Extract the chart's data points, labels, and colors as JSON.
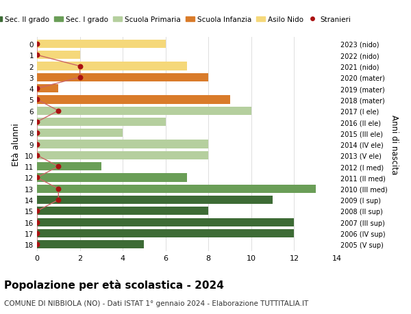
{
  "ages": [
    18,
    17,
    16,
    15,
    14,
    13,
    12,
    11,
    10,
    9,
    8,
    7,
    6,
    5,
    4,
    3,
    2,
    1,
    0
  ],
  "years": [
    "2005 (V sup)",
    "2006 (IV sup)",
    "2007 (III sup)",
    "2008 (II sup)",
    "2009 (I sup)",
    "2010 (III med)",
    "2011 (II med)",
    "2012 (I med)",
    "2013 (V ele)",
    "2014 (IV ele)",
    "2015 (III ele)",
    "2016 (II ele)",
    "2017 (I ele)",
    "2018 (mater)",
    "2019 (mater)",
    "2020 (mater)",
    "2021 (nido)",
    "2022 (nido)",
    "2023 (nido)"
  ],
  "values": [
    5,
    12,
    12,
    8,
    11,
    13,
    7,
    3,
    8,
    8,
    4,
    6,
    10,
    9,
    1,
    8,
    7,
    2,
    6
  ],
  "stranieri_x": [
    0,
    0,
    0,
    0,
    1,
    1,
    0,
    1,
    0,
    0,
    0,
    0,
    1,
    0,
    0,
    2,
    2,
    0,
    0
  ],
  "categories": {
    "sec2": [
      18,
      17,
      16,
      15,
      14
    ],
    "sec1": [
      13,
      12,
      11
    ],
    "primaria": [
      10,
      9,
      8,
      7,
      6
    ],
    "infanzia": [
      5,
      4,
      3
    ],
    "nido": [
      2,
      1,
      0
    ]
  },
  "colors": {
    "sec2": "#3d6b35",
    "sec1": "#6a9e57",
    "primaria": "#b5cf9e",
    "infanzia": "#d97b2a",
    "nido": "#f5d87a"
  },
  "stranieri_color": "#aa1111",
  "stranieri_line_color": "#cc6666",
  "xlim": [
    0,
    14
  ],
  "title": "Popolazione per età scolastica - 2024",
  "subtitle": "COMUNE DI NIBBIOLA (NO) - Dati ISTAT 1° gennaio 2024 - Elaborazione TUTTITALIA.IT",
  "ylabel": "Età alunni",
  "ylabel2": "Anni di nascita",
  "legend_labels": [
    "Sec. II grado",
    "Sec. I grado",
    "Scuola Primaria",
    "Scuola Infanzia",
    "Asilo Nido",
    "Stranieri"
  ],
  "background_color": "#ffffff",
  "grid_color": "#dddddd"
}
